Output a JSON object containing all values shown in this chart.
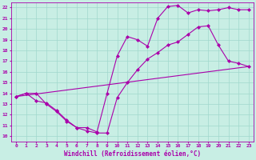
{
  "title": "",
  "xlabel": "Windchill (Refroidissement éolien,°C)",
  "ylabel": "",
  "xlim": [
    -0.5,
    23.5
  ],
  "ylim": [
    9.5,
    22.5
  ],
  "xticks": [
    0,
    1,
    2,
    3,
    4,
    5,
    6,
    7,
    8,
    9,
    10,
    11,
    12,
    13,
    14,
    15,
    16,
    17,
    18,
    19,
    20,
    21,
    22,
    23
  ],
  "yticks": [
    10,
    11,
    12,
    13,
    14,
    15,
    16,
    17,
    18,
    19,
    20,
    21,
    22
  ],
  "background_color": "#c8eee4",
  "grid_color": "#a0d8cc",
  "line_color": "#aa00aa",
  "line_straight": {
    "x": [
      0,
      23
    ],
    "y": [
      13.7,
      16.5
    ]
  },
  "line_valley": {
    "x": [
      0,
      1,
      2,
      3,
      4,
      5,
      6,
      7,
      8,
      9,
      10,
      11,
      12,
      13,
      14,
      15,
      16,
      17,
      18,
      19,
      20,
      21,
      22,
      23
    ],
    "y": [
      13.7,
      14.0,
      13.3,
      13.1,
      12.4,
      11.5,
      10.8,
      10.5,
      10.3,
      10.3,
      13.6,
      15.0,
      16.2,
      17.2,
      17.8,
      18.5,
      18.8,
      19.5,
      20.2,
      20.3,
      18.5,
      17.0,
      16.8,
      16.5
    ]
  },
  "line_upper": {
    "x": [
      0,
      1,
      2,
      3,
      4,
      5,
      6,
      7,
      8,
      9,
      10,
      11,
      12,
      13,
      14,
      15,
      16,
      17,
      18,
      19,
      20,
      21,
      22,
      23
    ],
    "y": [
      13.7,
      14.0,
      14.0,
      13.0,
      12.3,
      11.4,
      10.8,
      10.8,
      10.4,
      14.0,
      17.5,
      19.3,
      19.0,
      18.4,
      21.0,
      22.1,
      22.2,
      21.5,
      21.8,
      21.7,
      21.8,
      22.0,
      21.8,
      21.8
    ]
  },
  "marker": "D",
  "marker_size": 2.0,
  "linewidth": 0.8,
  "tick_fontsize": 4.5,
  "xlabel_fontsize": 5.5
}
